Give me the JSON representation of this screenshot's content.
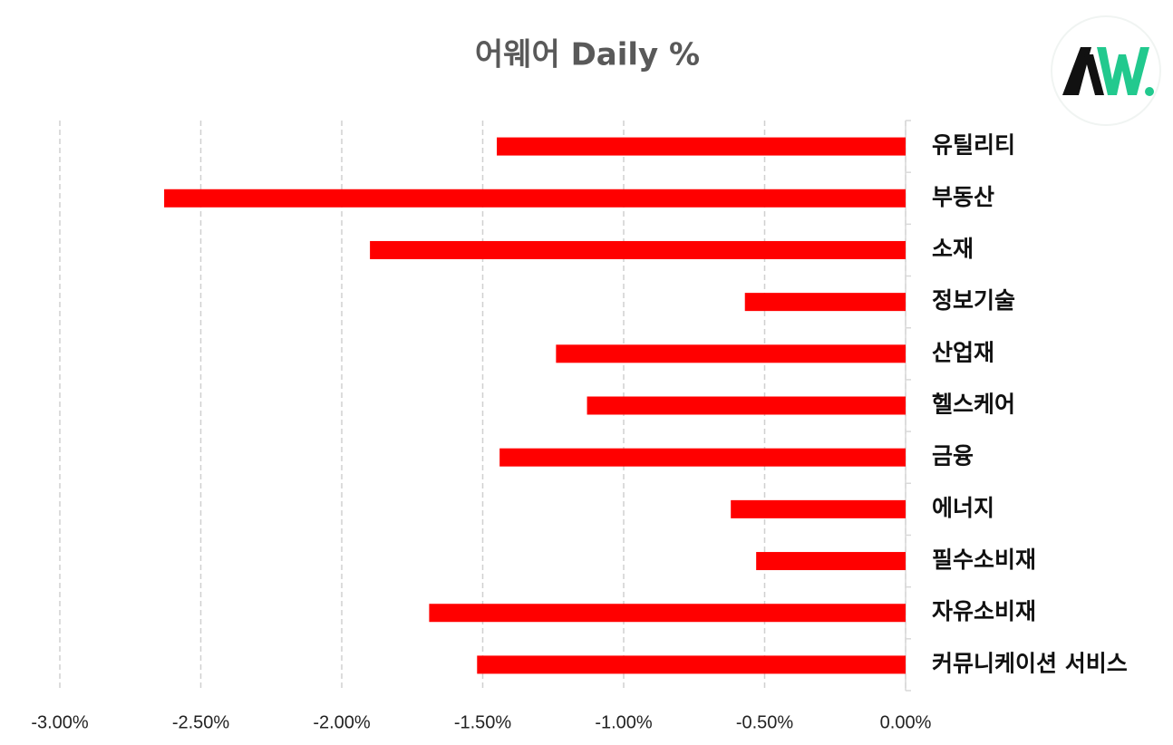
{
  "chart_data": {
    "type": "hbar",
    "title": "어웨어 Daily %",
    "categories": [
      "유틸리티",
      "부동산",
      "소재",
      "정보기술",
      "산업재",
      "헬스케어",
      "금융",
      "에너지",
      "필수소비재",
      "자유소비재",
      "커뮤니케이션 서비스"
    ],
    "values": [
      -1.45,
      -2.63,
      -1.9,
      -0.57,
      -1.24,
      -1.13,
      -1.44,
      -0.62,
      -0.53,
      -1.69,
      -1.52
    ],
    "color": "#ff0000",
    "xlim": [
      -3,
      0
    ],
    "xticks": [
      {
        "value": -3,
        "label": "-3.00%"
      },
      {
        "value": -2.5,
        "label": "-2.50%"
      },
      {
        "value": -2,
        "label": "-2.00%"
      },
      {
        "value": -1.5,
        "label": "-1.50%"
      },
      {
        "value": -1,
        "label": "-1.00%"
      },
      {
        "value": -0.5,
        "label": "-0.50%"
      },
      {
        "value": 0,
        "label": "0.00%"
      }
    ],
    "grid": true
  }
}
